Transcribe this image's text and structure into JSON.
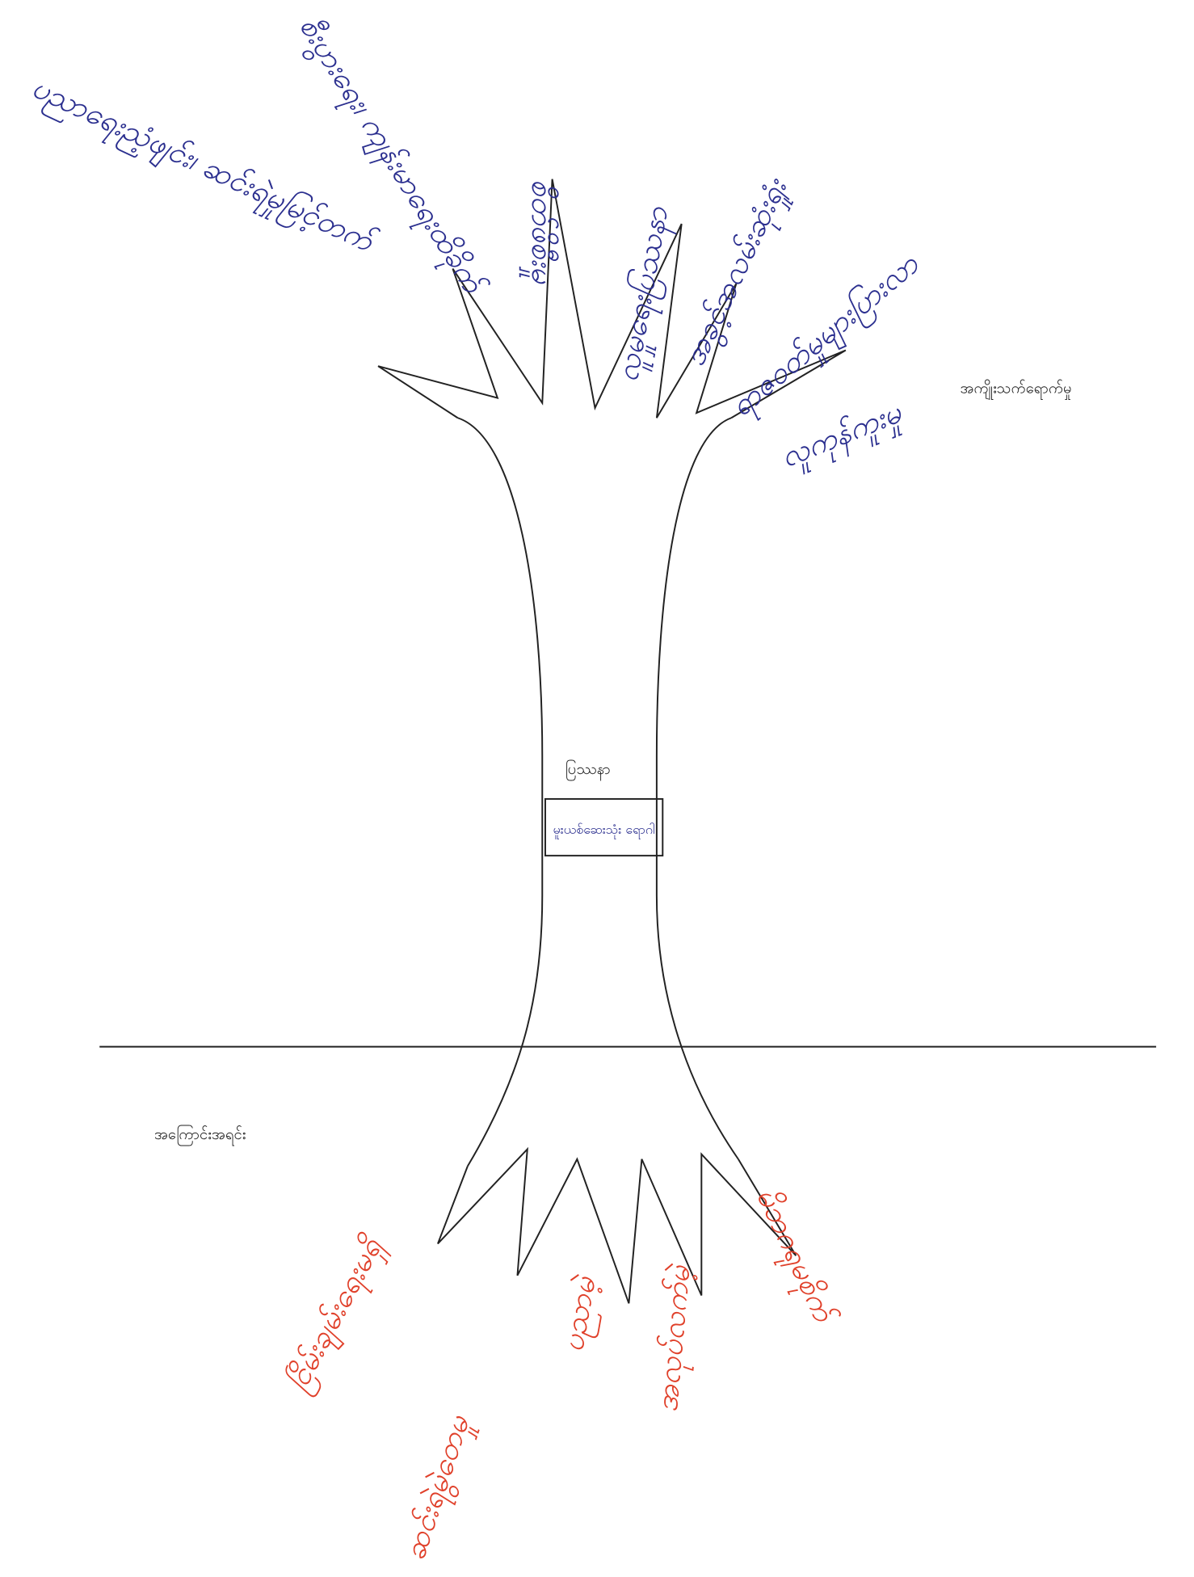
{
  "labels": {
    "effects": "အကျိုးသက်ရောက်မှု",
    "problem": "ပြဿနာ",
    "causes": "အကြောင်းအရင်း"
  },
  "problem": {
    "text": "မူးယစ်ဆေးသုံး ရောဂါ"
  },
  "effects": [
    "ပညာရေးညံ့ဖျင်း၊ ဆင်းရဲမှုမြင့်တက်",
    "စီးပွားရေး၊ ကျန်းမာရေးထိခိုက်",
    "စိတ်ဖိစီးမှု",
    "လူမှုရေးပြဿနာ",
    "အခွင့်အလမ်းဆုံးရှုံး",
    "ရာဇဝတ်မှုများပြားလာ",
    "လူကုန်ကူးမှု"
  ],
  "causes": [
    "ငြိမ်းချမ်းရေးမရှိ",
    "ဆင်းရဲမွဲတေမှု",
    "ပညာမဲ့",
    "အလုပ်လက်မဲ့",
    "မိဘဂရုမစိုက်"
  ]
}
